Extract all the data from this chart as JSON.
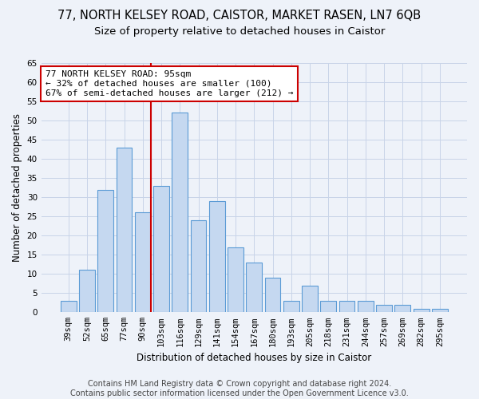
{
  "title_line1": "77, NORTH KELSEY ROAD, CAISTOR, MARKET RASEN, LN7 6QB",
  "title_line2": "Size of property relative to detached houses in Caistor",
  "xlabel": "Distribution of detached houses by size in Caistor",
  "ylabel": "Number of detached properties",
  "categories": [
    "39sqm",
    "52sqm",
    "65sqm",
    "77sqm",
    "90sqm",
    "103sqm",
    "116sqm",
    "129sqm",
    "141sqm",
    "154sqm",
    "167sqm",
    "180sqm",
    "193sqm",
    "205sqm",
    "218sqm",
    "231sqm",
    "244sqm",
    "257sqm",
    "269sqm",
    "282sqm",
    "295sqm"
  ],
  "values": [
    3,
    11,
    32,
    43,
    26,
    33,
    52,
    24,
    29,
    17,
    13,
    9,
    3,
    7,
    3,
    3,
    3,
    2,
    2,
    1,
    1
  ],
  "bar_color": "#c5d8f0",
  "bar_edge_color": "#5b9bd5",
  "highlight_index": 4,
  "highlight_line_color": "#cc0000",
  "annotation_text": "77 NORTH KELSEY ROAD: 95sqm\n← 32% of detached houses are smaller (100)\n67% of semi-detached houses are larger (212) →",
  "annotation_box_color": "#ffffff",
  "annotation_box_edge_color": "#cc0000",
  "ylim": [
    0,
    65
  ],
  "yticks": [
    0,
    5,
    10,
    15,
    20,
    25,
    30,
    35,
    40,
    45,
    50,
    55,
    60,
    65
  ],
  "footer_line1": "Contains HM Land Registry data © Crown copyright and database right 2024.",
  "footer_line2": "Contains public sector information licensed under the Open Government Licence v3.0.",
  "background_color": "#eef2f9",
  "grid_color": "#c8d4e8",
  "title_fontsize": 10.5,
  "subtitle_fontsize": 9.5,
  "axis_label_fontsize": 8.5,
  "tick_fontsize": 7.5,
  "annotation_fontsize": 8,
  "footer_fontsize": 7
}
